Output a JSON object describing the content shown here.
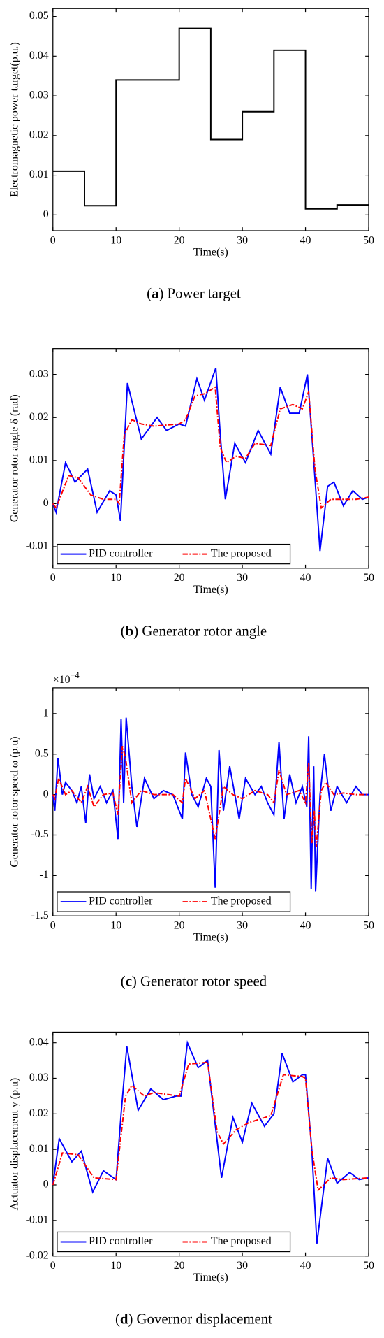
{
  "chart_data": [
    {
      "type": "line",
      "ylabel": "Electromagnetic power target(p.u.)",
      "xlabel": "Time(s)",
      "caption_parts": [
        "(",
        "a",
        ") Power target"
      ],
      "xlim": [
        0,
        50
      ],
      "xticks": [
        0,
        10,
        20,
        30,
        40,
        50
      ],
      "ylim": [
        -0.004,
        0.052
      ],
      "yticks": [
        0,
        0.01,
        0.02,
        0.03,
        0.04,
        0.05
      ],
      "series": [
        {
          "name": null,
          "color": "#000000",
          "linestyle": "solid",
          "x": [
            0,
            5,
            5,
            10,
            10,
            20,
            20,
            25,
            25,
            30,
            30,
            35,
            35,
            40,
            40,
            45,
            45,
            50
          ],
          "values": [
            0.011,
            0.011,
            0.0023,
            0.0023,
            0.034,
            0.034,
            0.047,
            0.047,
            0.019,
            0.019,
            0.026,
            0.026,
            0.0415,
            0.0415,
            0.0015,
            0.0015,
            0.0025,
            0.0025
          ]
        }
      ]
    },
    {
      "type": "line",
      "ylabel": "Generator rotor angle δ (rad)",
      "xlabel": "Time(s)",
      "caption_parts": [
        "(",
        "b",
        ") Generator rotor angle"
      ],
      "xlim": [
        0,
        50
      ],
      "xticks": [
        0,
        10,
        20,
        30,
        40,
        50
      ],
      "ylim": [
        -0.015,
        0.036
      ],
      "yticks": [
        -0.01,
        0,
        0.01,
        0.02,
        0.03
      ],
      "legend": "lower left",
      "series": [
        {
          "name": "PID controller",
          "color": "#0000ff",
          "linestyle": "solid",
          "x": [
            0,
            0.5,
            2,
            3.5,
            5.5,
            7,
            9,
            10,
            10.7,
            11.8,
            14,
            16.5,
            18,
            20,
            21,
            22.8,
            24,
            25.8,
            26.5,
            27.3,
            28.8,
            30.5,
            32.5,
            34.5,
            36,
            37.5,
            39,
            40.3,
            41.3,
            42.3,
            43.5,
            44.5,
            46,
            47.5,
            49,
            50
          ],
          "values": [
            0,
            -0.002,
            0.0095,
            0.005,
            0.008,
            -0.002,
            0.003,
            0.002,
            -0.004,
            0.028,
            0.015,
            0.02,
            0.017,
            0.0185,
            0.018,
            0.029,
            0.024,
            0.0315,
            0.016,
            0.001,
            0.014,
            0.0095,
            0.017,
            0.0115,
            0.027,
            0.021,
            0.021,
            0.03,
            0.01,
            -0.011,
            0.004,
            0.005,
            -0.0005,
            0.003,
            0.001,
            0.0015
          ]
        },
        {
          "name": "The proposed",
          "color": "#ff0000",
          "linestyle": "dash-dot",
          "x": [
            0,
            0.5,
            2.5,
            4,
            6,
            8,
            10,
            10.5,
            11.3,
            12.5,
            14,
            16,
            20,
            21,
            22.5,
            24,
            25.7,
            26.5,
            27.5,
            29,
            30.5,
            32,
            34.5,
            36,
            38,
            39.5,
            40.5,
            41.5,
            42.5,
            44,
            46,
            48,
            50
          ],
          "values": [
            0,
            -0.001,
            0.0065,
            0.006,
            0.002,
            0.001,
            0.001,
            0,
            0.016,
            0.0195,
            0.0185,
            0.018,
            0.0185,
            0.0195,
            0.025,
            0.0255,
            0.027,
            0.013,
            0.0095,
            0.011,
            0.0105,
            0.014,
            0.0135,
            0.022,
            0.023,
            0.022,
            0.026,
            0.008,
            -0.001,
            0.001,
            0.001,
            0.001,
            0.0015
          ]
        }
      ]
    },
    {
      "type": "line",
      "ylabel": "Generator rotor speed ω (p.u)",
      "xlabel": "Time(s)",
      "caption_parts": [
        "(",
        "c",
        ") Generator rotor speed"
      ],
      "y_multiplier": "×10",
      "y_exponent": "−4",
      "xlim": [
        0,
        50
      ],
      "xticks": [
        0,
        10,
        20,
        30,
        40,
        50
      ],
      "ylim": [
        -1.5,
        1.32
      ],
      "yticks": [
        -1.5,
        -1,
        -0.5,
        0,
        0.5,
        1
      ],
      "legend": "lower left",
      "series": [
        {
          "name": "PID controller",
          "color": "#0000ff",
          "linestyle": "solid",
          "x": [
            0,
            0.3,
            0.8,
            1.5,
            2,
            3,
            3.8,
            4.5,
            5.2,
            5.8,
            6.5,
            7.5,
            8.5,
            9.5,
            10.3,
            10.8,
            11.2,
            11.6,
            12.5,
            13.3,
            14.5,
            16,
            17.5,
            19,
            20.5,
            21,
            22,
            23,
            24.3,
            25,
            25.7,
            26.3,
            27,
            28,
            29.5,
            30.5,
            32,
            33,
            34,
            35,
            35.8,
            36.6,
            37.5,
            38.5,
            39.5,
            40.2,
            40.5,
            40.9,
            41.3,
            41.6,
            42.3,
            43,
            44,
            45,
            46.5,
            48,
            49,
            50
          ],
          "values": [
            0,
            -0.2,
            0.45,
            0,
            0.15,
            0.05,
            -0.1,
            0.1,
            -0.35,
            0.25,
            -0.05,
            0.1,
            -0.1,
            0.05,
            -0.55,
            0.93,
            -0.1,
            0.95,
            0.1,
            -0.4,
            0.2,
            -0.05,
            0.05,
            0,
            -0.3,
            0.52,
            0,
            -0.15,
            0.2,
            0.1,
            -1.15,
            0.55,
            -0.2,
            0.35,
            -0.3,
            0.2,
            0,
            0.1,
            -0.1,
            -0.25,
            0.65,
            -0.3,
            0.25,
            -0.1,
            0.1,
            -0.15,
            0.72,
            -1.17,
            0.35,
            -1.2,
            0,
            0.5,
            -0.2,
            0.1,
            -0.1,
            0.1,
            0,
            0
          ]
        },
        {
          "name": "The proposed",
          "color": "#ff0000",
          "linestyle": "dash-dot",
          "x": [
            0,
            0.3,
            0.9,
            2,
            3,
            4.5,
            5.5,
            6.5,
            8,
            9.5,
            10.3,
            11,
            11.5,
            12.5,
            14,
            16,
            19,
            20.5,
            21,
            22.5,
            24,
            25.7,
            26.2,
            27,
            28.5,
            30,
            32,
            34,
            35,
            35.8,
            37,
            39,
            40,
            40.5,
            41,
            41.4,
            41.7,
            42.5,
            43.2,
            44.5,
            46,
            48,
            50
          ],
          "values": [
            0,
            -0.05,
            0.2,
            0,
            0.05,
            -0.1,
            0.1,
            -0.15,
            0,
            0.02,
            -0.25,
            0.6,
            0.45,
            -0.1,
            0.05,
            0,
            0,
            -0.1,
            0.2,
            -0.05,
            0.05,
            -0.55,
            -0.3,
            0.1,
            0,
            -0.05,
            0.05,
            0,
            -0.1,
            0.3,
            0,
            0.05,
            -0.1,
            0.4,
            -0.6,
            -0.2,
            -0.65,
            0.05,
            0.15,
            0,
            0.02,
            0,
            0
          ]
        }
      ]
    },
    {
      "type": "line",
      "ylabel": "Actuator displacement y (p.u)",
      "xlabel": "Time(s)",
      "caption_parts": [
        "(",
        "d",
        ") Governor displacement"
      ],
      "xlim": [
        0,
        50
      ],
      "xticks": [
        0,
        10,
        20,
        30,
        40,
        50
      ],
      "ylim": [
        -0.02,
        0.043
      ],
      "yticks": [
        -0.02,
        -0.01,
        0,
        0.01,
        0.02,
        0.03,
        0.04
      ],
      "legend": "lower left",
      "series": [
        {
          "name": "PID controller",
          "color": "#0000ff",
          "linestyle": "solid",
          "x": [
            0,
            1,
            3,
            4.5,
            6.3,
            8,
            10,
            10.8,
            11.7,
            13.5,
            15.5,
            17.5,
            19.5,
            20.3,
            21.3,
            23,
            24.5,
            25.5,
            26.7,
            28.5,
            30,
            31.5,
            33.5,
            35,
            36.3,
            38,
            39.5,
            40,
            41,
            41.8,
            43.5,
            45,
            47,
            48.5,
            50
          ],
          "values": [
            0,
            0.013,
            0.0065,
            0.0095,
            -0.002,
            0.004,
            0.0015,
            0.02,
            0.039,
            0.021,
            0.027,
            0.024,
            0.025,
            0.025,
            0.04,
            0.033,
            0.035,
            0.02,
            0.002,
            0.019,
            0.012,
            0.023,
            0.0165,
            0.02,
            0.037,
            0.029,
            0.031,
            0.031,
            0.01,
            -0.0165,
            0.0075,
            0.0005,
            0.0035,
            0.0015,
            0.002
          ]
        },
        {
          "name": "The proposed",
          "color": "#ff0000",
          "linestyle": "dash-dot",
          "x": [
            0,
            1.5,
            4,
            6.5,
            10,
            11.5,
            12.5,
            14.5,
            16,
            20,
            21.5,
            24.5,
            26,
            27,
            29,
            31,
            34.5,
            36.5,
            39.5,
            40,
            41,
            42,
            44,
            46,
            50
          ],
          "values": [
            0,
            0.009,
            0.0085,
            0.002,
            0.0015,
            0.025,
            0.028,
            0.025,
            0.026,
            0.025,
            0.034,
            0.0345,
            0.015,
            0.0115,
            0.0155,
            0.0175,
            0.0195,
            0.031,
            0.0305,
            0.03,
            0.01,
            -0.0015,
            0.002,
            0.0015,
            0.002
          ]
        }
      ]
    }
  ]
}
